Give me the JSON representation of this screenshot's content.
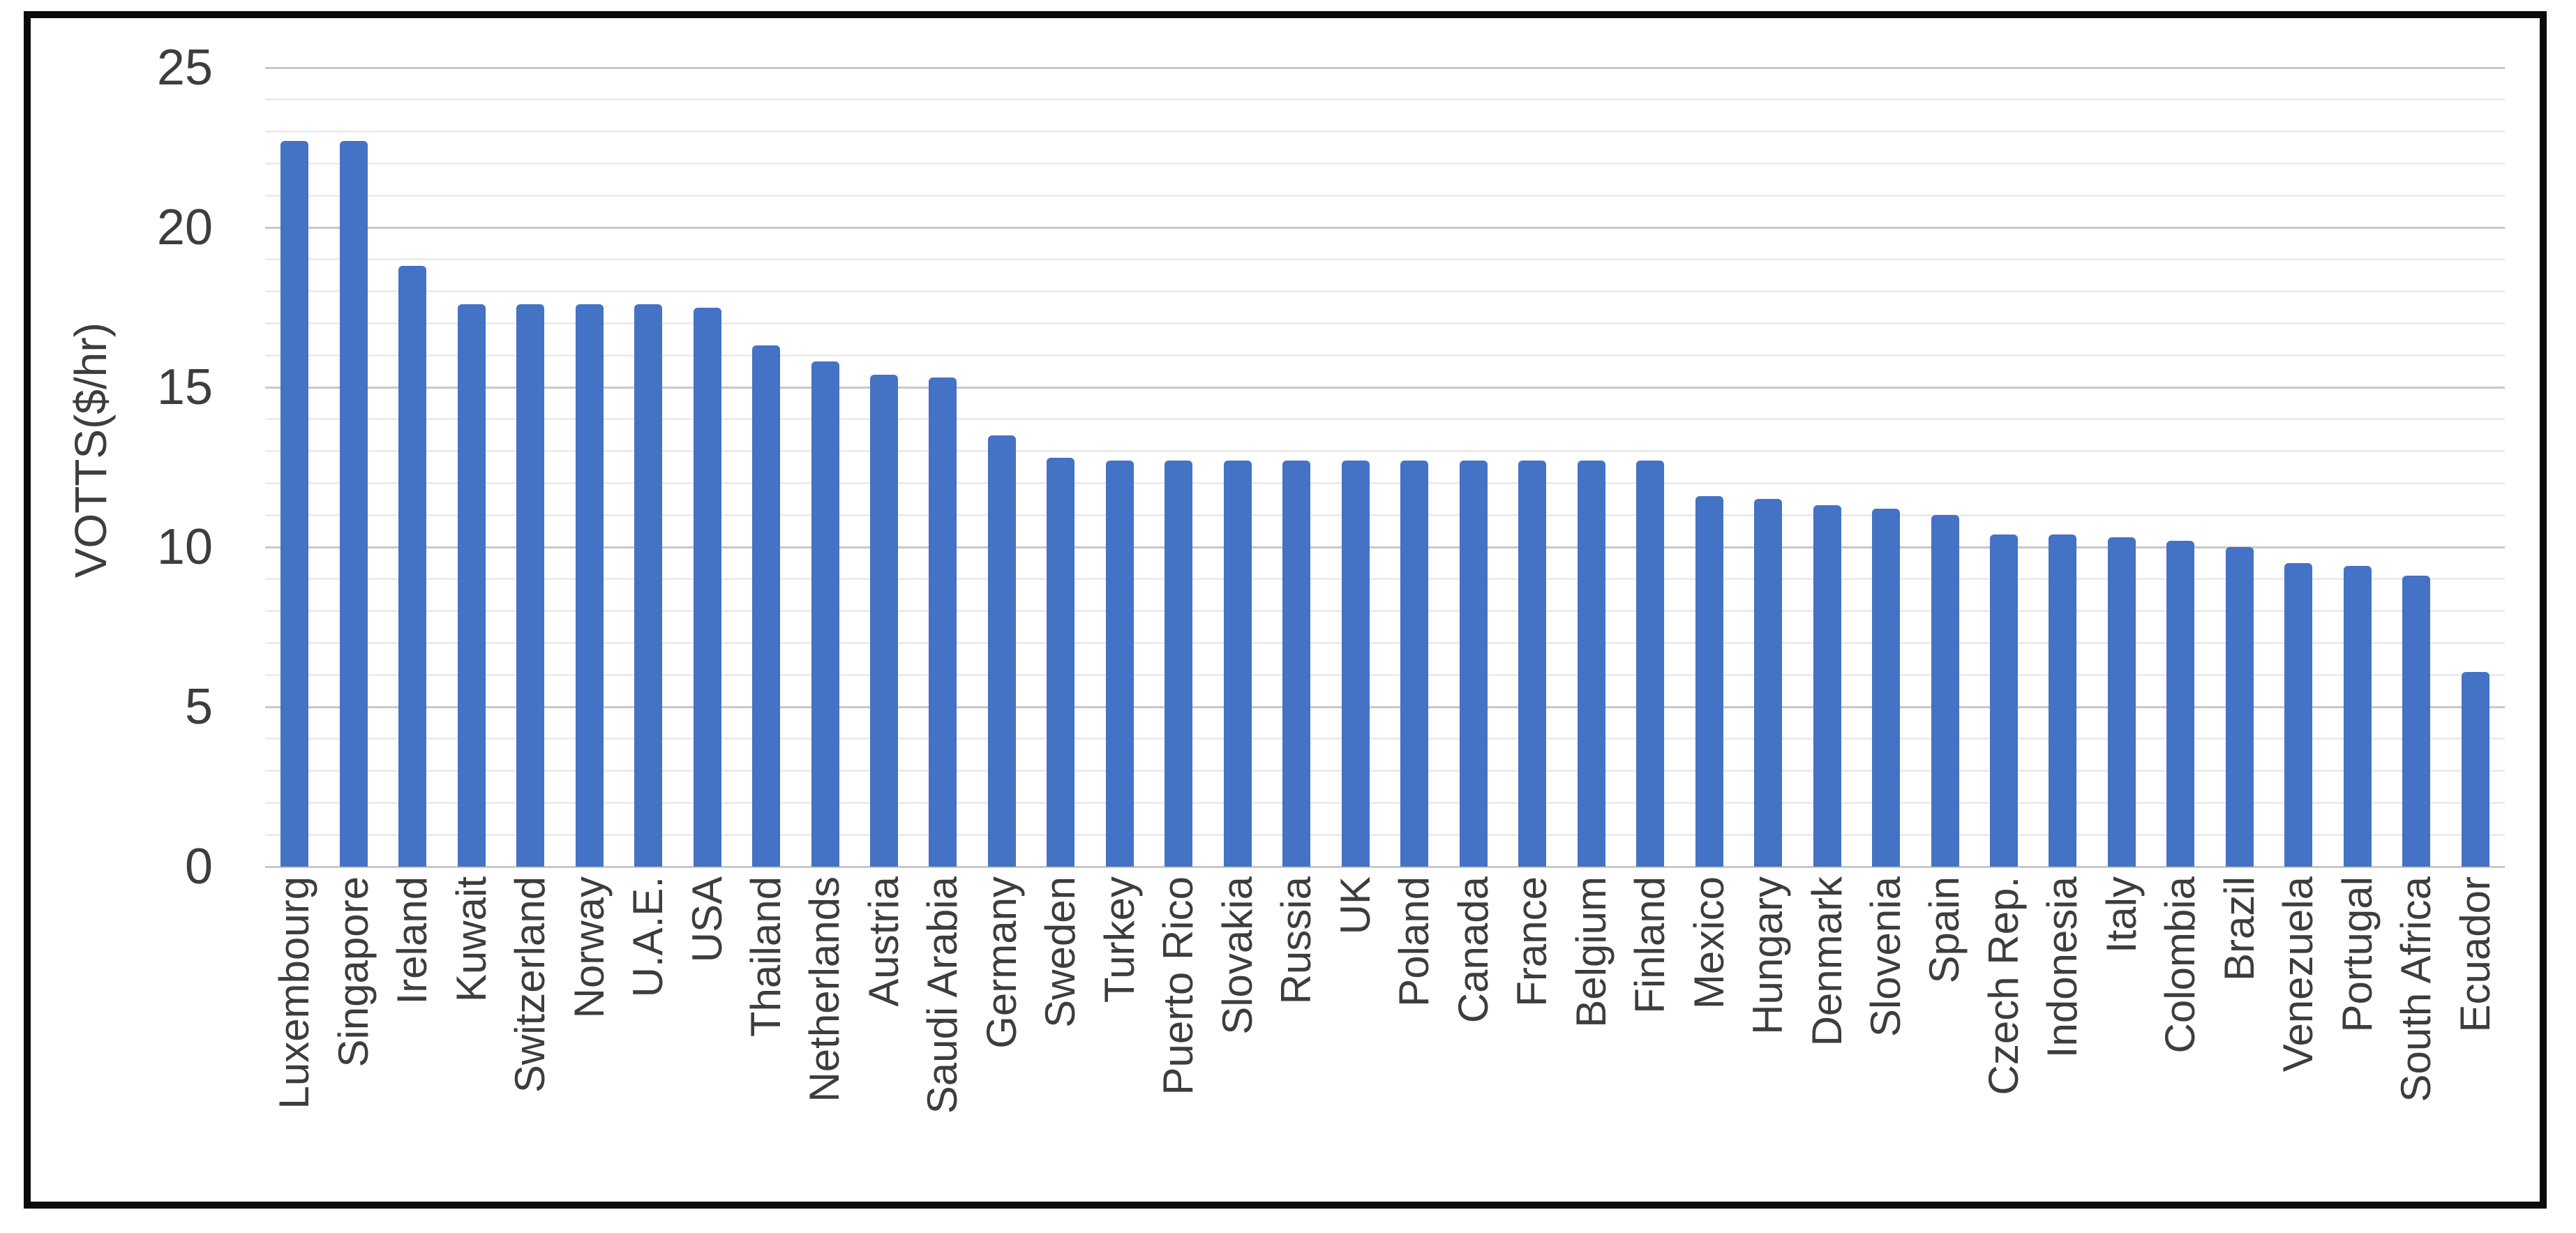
{
  "figure": {
    "background": "#FFFFFF",
    "border_color": "#0B0B0B"
  },
  "colors": {
    "bar": "#4472C4",
    "gridline_minor": "#ECECEC",
    "gridline_major": "#C8C8C8",
    "text": "#3D3D3D"
  },
  "chart_data": {
    "type": "bar",
    "title": "",
    "xlabel": "",
    "ylabel": "VOTTS($/hr)",
    "ylim": [
      0,
      25
    ],
    "yticks": [
      0,
      5,
      10,
      15,
      20,
      25
    ],
    "minor_grid_step": 1,
    "major_grid_step": 5,
    "grid": "horizontal, minor every 1 unit, major every 5 units",
    "legend": "none",
    "categories": [
      "Luxembourg",
      "Singapore",
      "Ireland",
      "Kuwait",
      "Switzerland",
      "Norway",
      "U.A.E.",
      "USA",
      "Thailand",
      "Netherlands",
      "Austria",
      "Saudi Arabia",
      "Germany",
      "Sweden",
      "Turkey",
      "Puerto Rico",
      "Slovakia",
      "Russia",
      "UK",
      "Poland",
      "Canada",
      "France",
      "Belgium",
      "Finland",
      "Mexico",
      "Hungary",
      "Denmark",
      "Slovenia",
      "Spain",
      "Czech Rep.",
      "Indonesia",
      "Italy",
      "Colombia",
      "Brazil",
      "Venezuela",
      "Portugal",
      "South Africa",
      "Ecuador"
    ],
    "values": [
      22.7,
      22.7,
      18.8,
      17.6,
      17.6,
      17.6,
      17.6,
      17.5,
      16.3,
      15.8,
      15.4,
      15.3,
      13.5,
      12.8,
      12.7,
      12.7,
      12.7,
      12.7,
      12.7,
      12.7,
      12.7,
      12.7,
      12.7,
      12.7,
      11.6,
      11.5,
      11.3,
      11.2,
      11.0,
      10.4,
      10.4,
      10.3,
      10.2,
      10.0,
      9.5,
      9.4,
      9.1,
      6.1
    ]
  }
}
